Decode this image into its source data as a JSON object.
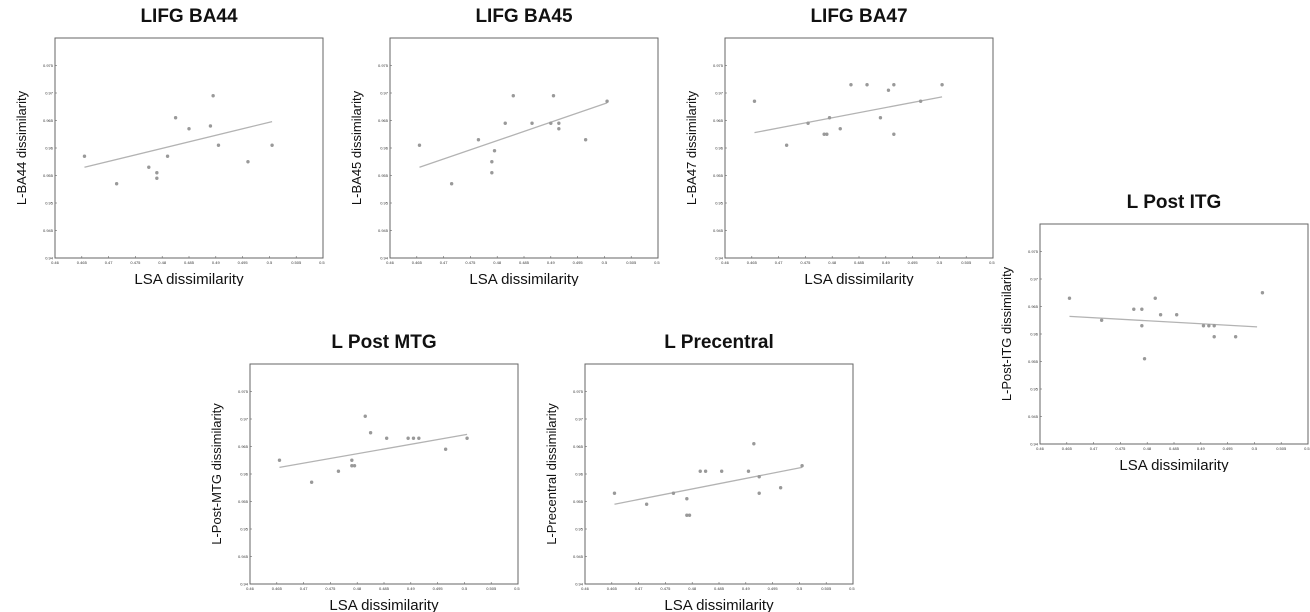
{
  "chart_data": [
    {
      "type": "scatter",
      "title": "LIFG BA44",
      "xlabel": "LSA dissimilarity",
      "ylabel": "L-BA44 dissimilarity",
      "xlim": [
        0.46,
        0.51
      ],
      "ylim": [
        0.94,
        0.98
      ],
      "xticks": [
        "0.46",
        "0.465",
        "0.47",
        "0.475",
        "0.48",
        "0.485",
        "0.49",
        "0.495",
        "0.5",
        "0.505",
        "0.51"
      ],
      "yticks": [
        "0.94",
        "0.945",
        "0.95",
        "0.955",
        "0.96",
        "0.965",
        "0.97",
        "0.975"
      ],
      "points": [
        [
          0.4655,
          0.9585
        ],
        [
          0.4715,
          0.9535
        ],
        [
          0.4775,
          0.9565
        ],
        [
          0.479,
          0.9555
        ],
        [
          0.479,
          0.9545
        ],
        [
          0.481,
          0.9585
        ],
        [
          0.4825,
          0.9655
        ],
        [
          0.485,
          0.9635
        ],
        [
          0.489,
          0.964
        ],
        [
          0.4895,
          0.9695
        ],
        [
          0.4905,
          0.9605
        ],
        [
          0.496,
          0.9575
        ],
        [
          0.5005,
          0.9605
        ]
      ],
      "fit": [
        [
          0.4655,
          0.9565
        ],
        [
          0.5005,
          0.9648
        ]
      ],
      "grid": false
    },
    {
      "type": "scatter",
      "title": "LIFG BA45",
      "xlabel": "LSA dissimilarity",
      "ylabel": "L-BA45 dissimilarity",
      "xlim": [
        0.46,
        0.51
      ],
      "ylim": [
        0.94,
        0.98
      ],
      "xticks": [
        "0.46",
        "0.465",
        "0.47",
        "0.475",
        "0.48",
        "0.485",
        "0.49",
        "0.495",
        "0.5",
        "0.505",
        "0.51"
      ],
      "yticks": [
        "0.94",
        "0.945",
        "0.95",
        "0.955",
        "0.96",
        "0.965",
        "0.97",
        "0.975"
      ],
      "points": [
        [
          0.4655,
          0.9605
        ],
        [
          0.4715,
          0.9535
        ],
        [
          0.4765,
          0.9615
        ],
        [
          0.479,
          0.9575
        ],
        [
          0.479,
          0.9555
        ],
        [
          0.4795,
          0.9595
        ],
        [
          0.4815,
          0.9645
        ],
        [
          0.483,
          0.9695
        ],
        [
          0.4865,
          0.9645
        ],
        [
          0.4905,
          0.9695
        ],
        [
          0.49,
          0.9645
        ],
        [
          0.4915,
          0.9645
        ],
        [
          0.4915,
          0.9635
        ],
        [
          0.4965,
          0.9615
        ],
        [
          0.5005,
          0.9685
        ]
      ],
      "fit": [
        [
          0.4655,
          0.9565
        ],
        [
          0.5005,
          0.9682
        ]
      ],
      "grid": false
    },
    {
      "type": "scatter",
      "title": "LIFG BA47",
      "xlabel": "LSA dissimilarity",
      "ylabel": "L-BA47 dissimilarity",
      "xlim": [
        0.46,
        0.51
      ],
      "ylim": [
        0.94,
        0.98
      ],
      "xticks": [
        "0.46",
        "0.465",
        "0.47",
        "0.475",
        "0.48",
        "0.485",
        "0.49",
        "0.495",
        "0.5",
        "0.505",
        "0.51"
      ],
      "yticks": [
        "0.94",
        "0.945",
        "0.95",
        "0.955",
        "0.96",
        "0.965",
        "0.97",
        "0.975"
      ],
      "points": [
        [
          0.4655,
          0.9685
        ],
        [
          0.4715,
          0.9605
        ],
        [
          0.4755,
          0.9645
        ],
        [
          0.4785,
          0.9625
        ],
        [
          0.479,
          0.9625
        ],
        [
          0.4795,
          0.9655
        ],
        [
          0.4815,
          0.9635
        ],
        [
          0.4835,
          0.9715
        ],
        [
          0.4865,
          0.9715
        ],
        [
          0.489,
          0.9655
        ],
        [
          0.4905,
          0.9705
        ],
        [
          0.4915,
          0.9715
        ],
        [
          0.4915,
          0.9625
        ],
        [
          0.4965,
          0.9685
        ],
        [
          0.5005,
          0.9715
        ]
      ],
      "fit": [
        [
          0.4655,
          0.9628
        ],
        [
          0.5005,
          0.9693
        ]
      ],
      "grid": false
    },
    {
      "type": "scatter",
      "title": "L Post ITG",
      "xlabel": "LSA dissimilarity",
      "ylabel": "L-Post-ITG dissimilarity",
      "xlim": [
        0.46,
        0.51
      ],
      "ylim": [
        0.94,
        0.98
      ],
      "xticks": [
        "0.46",
        "0.465",
        "0.47",
        "0.475",
        "0.48",
        "0.485",
        "0.49",
        "0.495",
        "0.5",
        "0.505",
        "0.51"
      ],
      "yticks": [
        "0.94",
        "0.945",
        "0.95",
        "0.955",
        "0.96",
        "0.965",
        "0.97",
        "0.975"
      ],
      "points": [
        [
          0.4655,
          0.9665
        ],
        [
          0.4715,
          0.9625
        ],
        [
          0.4775,
          0.9645
        ],
        [
          0.479,
          0.9645
        ],
        [
          0.479,
          0.9615
        ],
        [
          0.4795,
          0.9555
        ],
        [
          0.4815,
          0.9665
        ],
        [
          0.4825,
          0.9635
        ],
        [
          0.4855,
          0.9635
        ],
        [
          0.4905,
          0.9615
        ],
        [
          0.4915,
          0.9615
        ],
        [
          0.4925,
          0.9615
        ],
        [
          0.4925,
          0.9595
        ],
        [
          0.4965,
          0.9595
        ],
        [
          0.5015,
          0.9675
        ]
      ],
      "fit": [
        [
          0.4655,
          0.9632
        ],
        [
          0.5005,
          0.9613
        ]
      ],
      "grid": false
    },
    {
      "type": "scatter",
      "title": "L Post MTG",
      "xlabel": "LSA dissimilarity",
      "ylabel": "L-Post-MTG dissimilarity",
      "xlim": [
        0.46,
        0.51
      ],
      "ylim": [
        0.94,
        0.98
      ],
      "xticks": [
        "0.46",
        "0.465",
        "0.47",
        "0.475",
        "0.48",
        "0.485",
        "0.49",
        "0.495",
        "0.5",
        "0.505",
        "0.51"
      ],
      "yticks": [
        "0.94",
        "0.945",
        "0.95",
        "0.955",
        "0.96",
        "0.965",
        "0.97",
        "0.975"
      ],
      "points": [
        [
          0.4655,
          0.9625
        ],
        [
          0.4715,
          0.9585
        ],
        [
          0.4765,
          0.9605
        ],
        [
          0.479,
          0.9625
        ],
        [
          0.479,
          0.9615
        ],
        [
          0.4795,
          0.9615
        ],
        [
          0.4815,
          0.9705
        ],
        [
          0.4825,
          0.9675
        ],
        [
          0.4855,
          0.9665
        ],
        [
          0.4895,
          0.9665
        ],
        [
          0.4905,
          0.9665
        ],
        [
          0.4915,
          0.9665
        ],
        [
          0.4965,
          0.9645
        ],
        [
          0.5005,
          0.9665
        ]
      ],
      "fit": [
        [
          0.4655,
          0.9612
        ],
        [
          0.5005,
          0.9672
        ]
      ],
      "grid": false
    },
    {
      "type": "scatter",
      "title": "L Precentral",
      "xlabel": "LSA dissimilarity",
      "ylabel": "L-Precentral dissimilarity",
      "xlim": [
        0.46,
        0.51
      ],
      "ylim": [
        0.94,
        0.98
      ],
      "xticks": [
        "0.46",
        "0.465",
        "0.47",
        "0.475",
        "0.48",
        "0.485",
        "0.49",
        "0.495",
        "0.5",
        "0.505",
        "0.51"
      ],
      "yticks": [
        "0.94",
        "0.945",
        "0.95",
        "0.955",
        "0.96",
        "0.965",
        "0.97",
        "0.975"
      ],
      "points": [
        [
          0.4655,
          0.9565
        ],
        [
          0.4715,
          0.9545
        ],
        [
          0.4765,
          0.9565
        ],
        [
          0.479,
          0.9555
        ],
        [
          0.479,
          0.9525
        ],
        [
          0.4795,
          0.9525
        ],
        [
          0.4815,
          0.9605
        ],
        [
          0.4825,
          0.9605
        ],
        [
          0.4855,
          0.9605
        ],
        [
          0.4905,
          0.9605
        ],
        [
          0.4915,
          0.9655
        ],
        [
          0.4925,
          0.9595
        ],
        [
          0.4925,
          0.9565
        ],
        [
          0.4965,
          0.9575
        ],
        [
          0.5005,
          0.9615
        ]
      ],
      "fit": [
        [
          0.4655,
          0.9545
        ],
        [
          0.5005,
          0.9612
        ]
      ],
      "grid": false
    }
  ]
}
